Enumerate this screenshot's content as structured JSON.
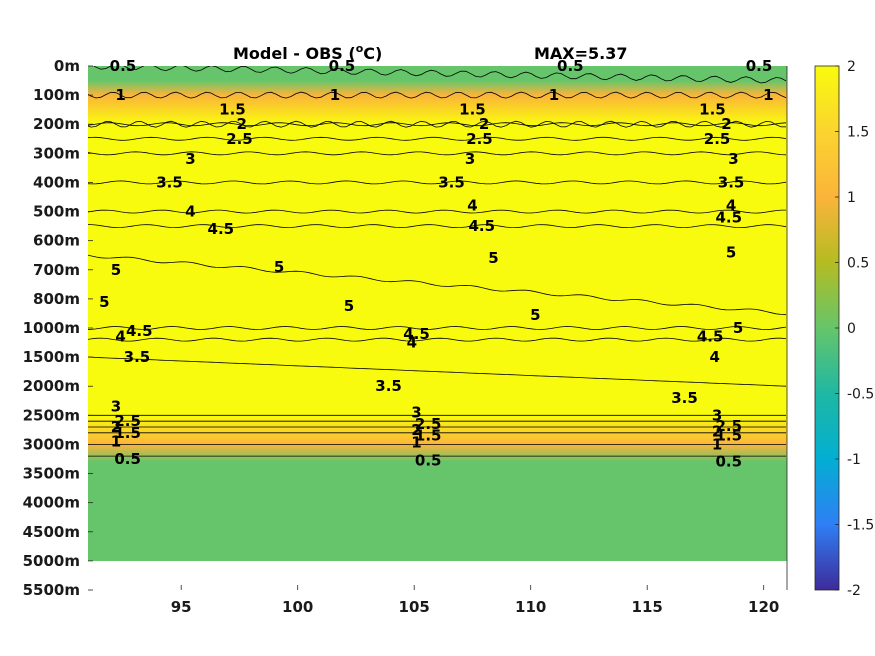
{
  "chart_data": {
    "type": "heatmap",
    "title": "Model - OBS (",
    "title_unit_sup": "o",
    "title_unit_end": "C)",
    "max_label": "MAX=5.37",
    "x_ticks": [
      95,
      100,
      105,
      110,
      115,
      120
    ],
    "xlim": [
      91,
      121
    ],
    "y_tick_labels": [
      "0m",
      "100m",
      "200m",
      "300m",
      "400m",
      "500m",
      "600m",
      "700m",
      "800m",
      "1000m",
      "1500m",
      "2000m",
      "2500m",
      "3000m",
      "3500m",
      "4000m",
      "4500m",
      "5000m",
      "5500m"
    ],
    "y_ticks_depth_m": [
      0,
      100,
      200,
      300,
      400,
      500,
      600,
      700,
      800,
      1000,
      1500,
      2000,
      2500,
      3000,
      3500,
      4000,
      4500,
      5000,
      5500
    ],
    "data_bottom_depth_m": 5000,
    "colorbar": {
      "clim": [
        -2,
        2
      ],
      "ticks": [
        2,
        1.5,
        1,
        0.5,
        0,
        -0.5,
        -1,
        -1.5,
        -2
      ],
      "tick_labels": [
        "2",
        "1.5",
        "1",
        "0.5",
        "0",
        "-0.5",
        "-1",
        "-1.5",
        "-2"
      ],
      "colormap": "parula"
    },
    "color_profile": [
      {
        "depth": "0m",
        "value": 0.4
      },
      {
        "depth": "50m",
        "value": 0.5
      },
      {
        "depth": "100m",
        "value": 1.3
      },
      {
        "depth": "200m",
        "value": 2.0
      },
      {
        "depth": "2500m",
        "value": 2.0
      },
      {
        "depth": "3000m",
        "value": 1.3
      },
      {
        "depth": "3300m",
        "value": 0.5
      },
      {
        "depth": "5000m",
        "value": 0.35
      }
    ],
    "contours": [
      {
        "level": "0.5",
        "depth": "0m-50m"
      },
      {
        "level": "1",
        "depth": "100m"
      },
      {
        "level": "1.5",
        "depth": "200m"
      },
      {
        "level": "2",
        "depth": "200m"
      },
      {
        "level": "2.5",
        "depth": "250m"
      },
      {
        "level": "3",
        "depth": "300m"
      },
      {
        "level": "3.5",
        "depth": "400m"
      },
      {
        "level": "4",
        "depth": "500m"
      },
      {
        "level": "4.5",
        "depth": "550m"
      },
      {
        "level": "5",
        "depth": "650m-900m"
      },
      {
        "level": "4.5",
        "depth": "1000m"
      },
      {
        "level": "4",
        "depth": "1200m"
      },
      {
        "level": "3.5",
        "depth": "1500m-2000m"
      },
      {
        "level": "3",
        "depth": "2500m"
      },
      {
        "level": "2.5",
        "depth": "2600m"
      },
      {
        "level": "2",
        "depth": "2700m"
      },
      {
        "level": "1.5",
        "depth": "2800m"
      },
      {
        "level": "1",
        "depth": "3000m"
      },
      {
        "level": "0.5",
        "depth": "3200m"
      }
    ],
    "contour_labels": [
      {
        "text": "0.5",
        "x": 92.5,
        "y": "0m"
      },
      {
        "text": "0.5",
        "x": 101.9,
        "y": "0m"
      },
      {
        "text": "0.5",
        "x": 111.7,
        "y": "0m"
      },
      {
        "text": "0.5",
        "x": 119.8,
        "y": "0m"
      },
      {
        "text": "1",
        "x": 92.4,
        "y": "100m"
      },
      {
        "text": "1",
        "x": 101.6,
        "y": "100m"
      },
      {
        "text": "1",
        "x": 111.0,
        "y": "100m"
      },
      {
        "text": "1",
        "x": 120.2,
        "y": "100m"
      },
      {
        "text": "1.5",
        "x": 97.2,
        "y": "150m"
      },
      {
        "text": "1.5",
        "x": 107.5,
        "y": "150m"
      },
      {
        "text": "1.5",
        "x": 117.8,
        "y": "150m"
      },
      {
        "text": "2",
        "x": 97.6,
        "y": "200m"
      },
      {
        "text": "2",
        "x": 108.0,
        "y": "200m"
      },
      {
        "text": "2",
        "x": 118.4,
        "y": "200m"
      },
      {
        "text": "2.5",
        "x": 97.5,
        "y": "250m"
      },
      {
        "text": "2.5",
        "x": 107.8,
        "y": "250m"
      },
      {
        "text": "2.5",
        "x": 118.0,
        "y": "250m"
      },
      {
        "text": "3",
        "x": 95.4,
        "y": "320m"
      },
      {
        "text": "3",
        "x": 107.4,
        "y": "320m"
      },
      {
        "text": "3",
        "x": 118.7,
        "y": "320m"
      },
      {
        "text": "3.5",
        "x": 94.5,
        "y": "400m"
      },
      {
        "text": "3.5",
        "x": 106.6,
        "y": "400m"
      },
      {
        "text": "3.5",
        "x": 118.6,
        "y": "400m"
      },
      {
        "text": "4",
        "x": 95.4,
        "y": "500m"
      },
      {
        "text": "4",
        "x": 107.5,
        "y": "480m"
      },
      {
        "text": "4",
        "x": 118.6,
        "y": "480m"
      },
      {
        "text": "4.5",
        "x": 96.7,
        "y": "560m"
      },
      {
        "text": "4.5",
        "x": 107.9,
        "y": "550m"
      },
      {
        "text": "4.5",
        "x": 118.5,
        "y": "520m"
      },
      {
        "text": "5",
        "x": 92.2,
        "y": "700m"
      },
      {
        "text": "5",
        "x": 99.2,
        "y": "690m"
      },
      {
        "text": "5",
        "x": 108.4,
        "y": "660m"
      },
      {
        "text": "5",
        "x": 118.6,
        "y": "640m"
      },
      {
        "text": "5",
        "x": 91.7,
        "y": "820m"
      },
      {
        "text": "5",
        "x": 102.2,
        "y": "850m"
      },
      {
        "text": "5",
        "x": 110.2,
        "y": "910m"
      },
      {
        "text": "5",
        "x": 118.9,
        "y": "1000m"
      },
      {
        "text": "4.5",
        "x": 93.2,
        "y": "1050m"
      },
      {
        "text": "4.5",
        "x": 105.1,
        "y": "1100m"
      },
      {
        "text": "4.5",
        "x": 117.7,
        "y": "1150m"
      },
      {
        "text": "4",
        "x": 92.4,
        "y": "1150m"
      },
      {
        "text": "4",
        "x": 104.9,
        "y": "1250m"
      },
      {
        "text": "4",
        "x": 117.9,
        "y": "1500m"
      },
      {
        "text": "3.5",
        "x": 93.1,
        "y": "1500m"
      },
      {
        "text": "3.5",
        "x": 103.9,
        "y": "2000m"
      },
      {
        "text": "3.5",
        "x": 116.6,
        "y": "2200m"
      },
      {
        "text": "3",
        "x": 92.2,
        "y": "2350m"
      },
      {
        "text": "3",
        "x": 105.1,
        "y": "2450m"
      },
      {
        "text": "3",
        "x": 118.0,
        "y": "2500m"
      },
      {
        "text": "2.5",
        "x": 92.7,
        "y": "2600m"
      },
      {
        "text": "2.5",
        "x": 105.6,
        "y": "2650m"
      },
      {
        "text": "2.5",
        "x": 118.5,
        "y": "2680m"
      },
      {
        "text": "2",
        "x": 92.2,
        "y": "2700m"
      },
      {
        "text": "2",
        "x": 105.1,
        "y": "2750m"
      },
      {
        "text": "2",
        "x": 118.0,
        "y": "2780m"
      },
      {
        "text": "1.5",
        "x": 92.7,
        "y": "2800m"
      },
      {
        "text": "1.5",
        "x": 105.6,
        "y": "2850m"
      },
      {
        "text": "1.5",
        "x": 118.5,
        "y": "2850m"
      },
      {
        "text": "1",
        "x": 92.2,
        "y": "2950m"
      },
      {
        "text": "1",
        "x": 105.1,
        "y": "2970m"
      },
      {
        "text": "1",
        "x": 118.0,
        "y": "3000m"
      },
      {
        "text": "0.5",
        "x": 92.7,
        "y": "3250m"
      },
      {
        "text": "0.5",
        "x": 105.6,
        "y": "3280m"
      },
      {
        "text": "0.5",
        "x": 118.5,
        "y": "3290m"
      }
    ]
  }
}
